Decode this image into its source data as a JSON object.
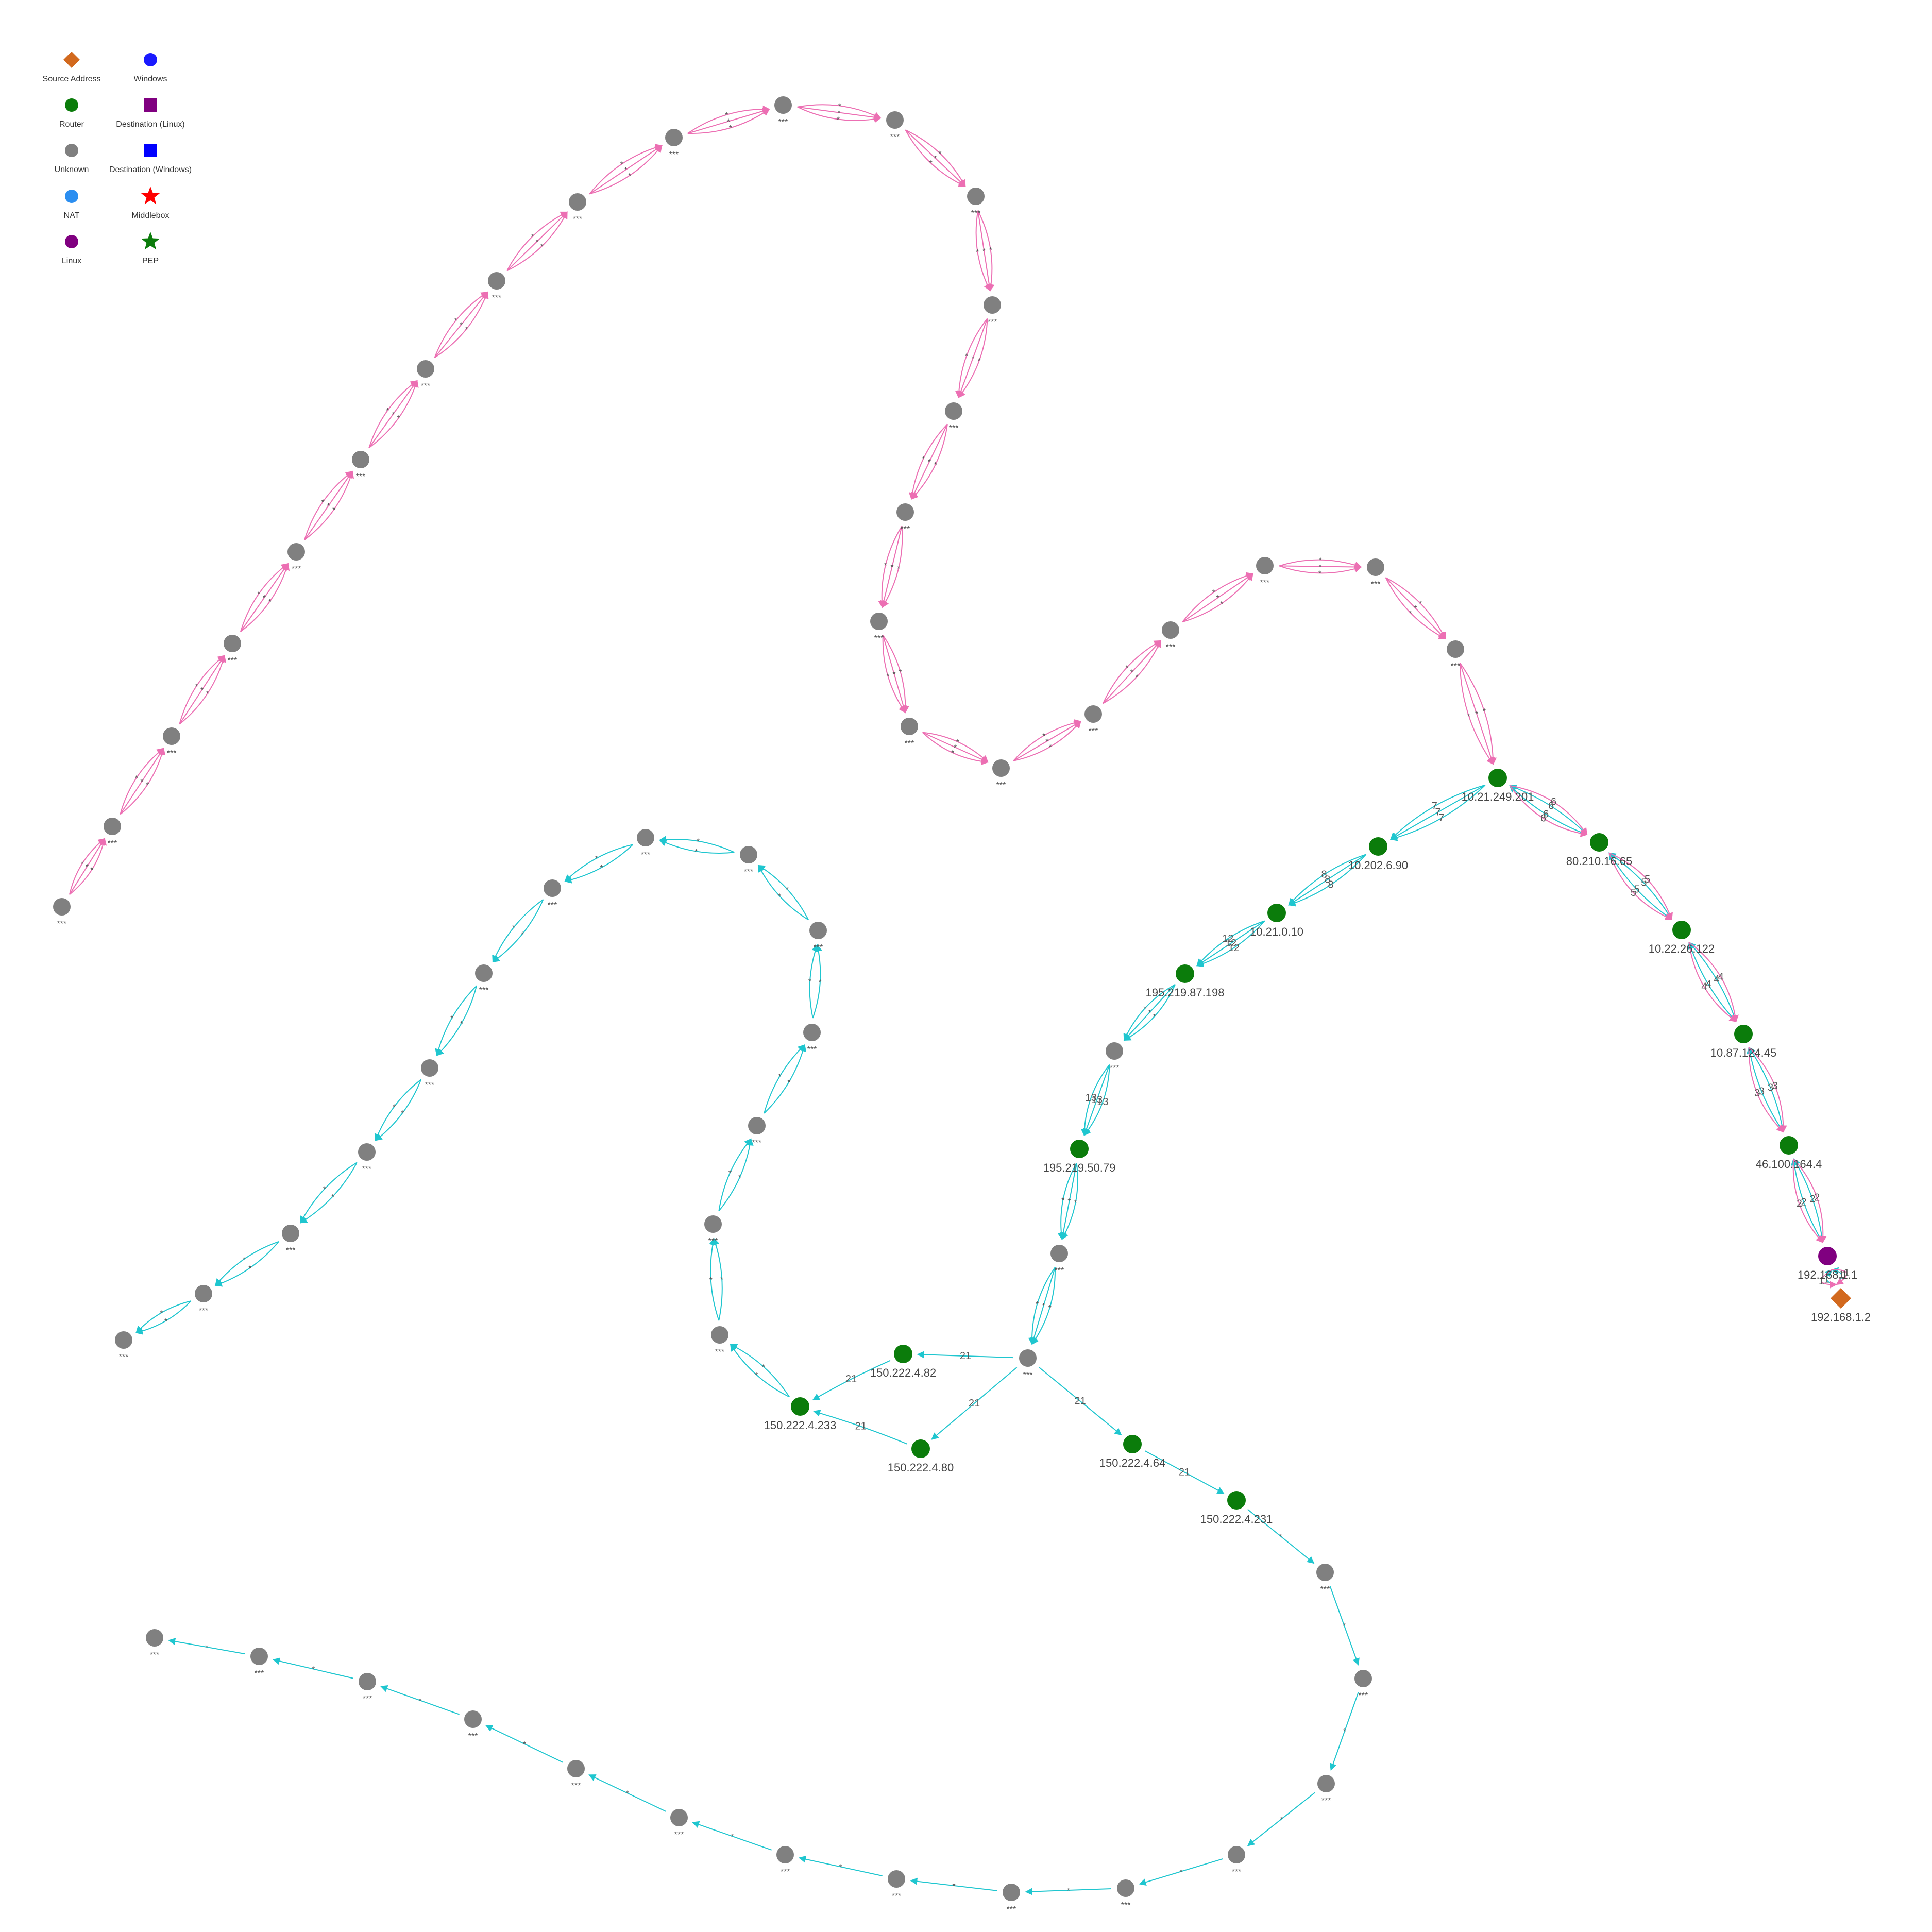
{
  "colors": {
    "forward_edge": "#1fc6cf",
    "backward_edge": "#ec6fb3",
    "source": "#d2691e",
    "windows": "#1a1aff",
    "router": "#0b7c0b",
    "dest_linux": "#800080",
    "unknown": "#808080",
    "dest_windows": "#0000ff",
    "nat": "#2b8ef0",
    "middlebox": "#ff0000",
    "linux": "#800080",
    "pep": "#0b7c0b"
  },
  "legend": [
    {
      "label": "Source Address",
      "shape": "diamond",
      "color": "#d2691e"
    },
    {
      "label": "Windows",
      "shape": "circle",
      "color": "#1a1aff"
    },
    {
      "label": "Router",
      "shape": "circle",
      "color": "#0b7c0b"
    },
    {
      "label": "Destination (Linux)",
      "shape": "square",
      "color": "#800080"
    },
    {
      "label": "Unknown",
      "shape": "circle",
      "color": "#808080"
    },
    {
      "label": "Destination (Windows)",
      "shape": "square",
      "color": "#0000ff"
    },
    {
      "label": "NAT",
      "shape": "circle",
      "color": "#2b8ef0"
    },
    {
      "label": "Middlebox",
      "shape": "star",
      "color": "#ff0000"
    },
    {
      "label": "Linux",
      "shape": "circle",
      "color": "#800080"
    },
    {
      "label": "PEP",
      "shape": "star",
      "color": "#0b7c0b"
    }
  ],
  "named_nodes": [
    {
      "id": "src",
      "label": "192.168.1.2",
      "type": "source"
    },
    {
      "id": "gw",
      "label": "192.168.1.1",
      "type": "linux"
    },
    {
      "id": "r2",
      "label": "46.100.164.4",
      "type": "router"
    },
    {
      "id": "r3",
      "label": "10.87.124.45",
      "type": "router"
    },
    {
      "id": "r4",
      "label": "10.22.26.122",
      "type": "router"
    },
    {
      "id": "r5",
      "label": "80.210.16.65",
      "type": "router"
    },
    {
      "id": "r6",
      "label": "10.21.249.201",
      "type": "router"
    },
    {
      "id": "r7",
      "label": "10.202.6.90",
      "type": "router"
    },
    {
      "id": "r8",
      "label": "10.21.0.10",
      "type": "router"
    },
    {
      "id": "r12",
      "label": "195.219.87.198",
      "type": "router"
    },
    {
      "id": "r13",
      "label": "195.219.50.79",
      "type": "router"
    },
    {
      "id": "r21a",
      "label": "150.222.4.82",
      "type": "router"
    },
    {
      "id": "r21b",
      "label": "150.222.4.233",
      "type": "router"
    },
    {
      "id": "r21c",
      "label": "150.222.4.80",
      "type": "router"
    },
    {
      "id": "r21d",
      "label": "150.222.4.64",
      "type": "router"
    },
    {
      "id": "r21e",
      "label": "150.222.4.231",
      "type": "router"
    }
  ],
  "unknown_label": "***",
  "star_label": "*",
  "hop_labels": {
    "h1": "1",
    "h2": "2",
    "h3": "3",
    "h4": "4",
    "h5": "5",
    "h6": "6",
    "h7": "7",
    "h8": "8",
    "h12": "12",
    "h13": "13",
    "h21": "21"
  }
}
